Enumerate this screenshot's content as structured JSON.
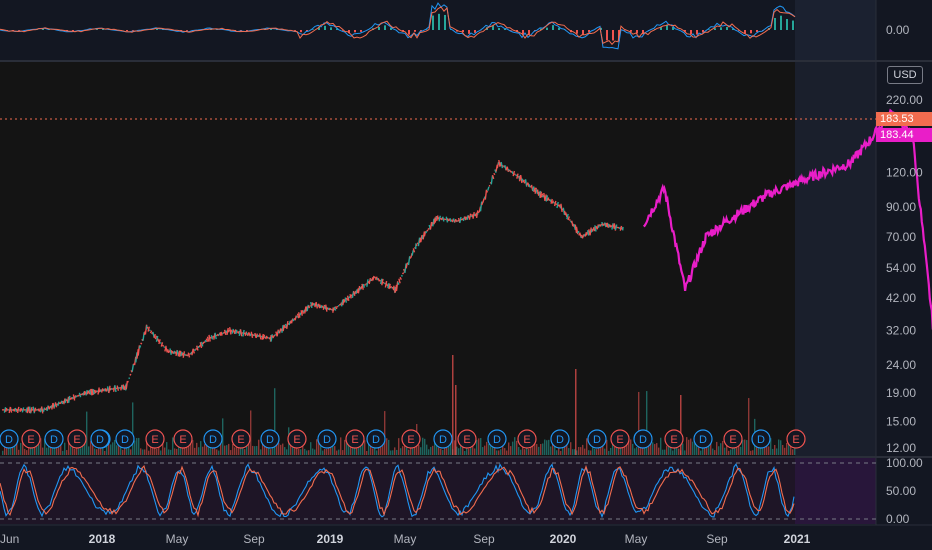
{
  "price_axis": {
    "currency_label": "USD",
    "ticks": [
      "220.00",
      "160.00",
      "120.00",
      "90.00",
      "70.00",
      "54.00",
      "42.00",
      "32.00",
      "24.00",
      "19.00",
      "15.00",
      "12.00"
    ],
    "scale": "log"
  },
  "price_tags": [
    {
      "value": "183.53",
      "color": "#f26c4f"
    },
    {
      "value": "183.44",
      "color": "#e91ec8"
    }
  ],
  "oscillator_top": {
    "ticks": [
      "0.00"
    ]
  },
  "oscillator_bottom": {
    "ticks": [
      "100.00",
      "50.00",
      "0.00"
    ]
  },
  "time_axis": {
    "labels": [
      {
        "text": "Jun",
        "bold": false
      },
      {
        "text": "2018",
        "bold": true
      },
      {
        "text": "May",
        "bold": false
      },
      {
        "text": "Sep",
        "bold": false
      },
      {
        "text": "2019",
        "bold": true
      },
      {
        "text": "May",
        "bold": false
      },
      {
        "text": "Sep",
        "bold": false
      },
      {
        "text": "2020",
        "bold": true
      },
      {
        "text": "May",
        "bold": false
      },
      {
        "text": "Sep",
        "bold": false
      },
      {
        "text": "2021",
        "bold": true
      }
    ]
  },
  "events": [
    "D",
    "E",
    "D",
    "E",
    "D",
    "D",
    "E",
    "E",
    "D",
    "E",
    "D",
    "E",
    "D",
    "E",
    "D",
    "E",
    "D",
    "E",
    "D",
    "E",
    "D",
    "D",
    "E",
    "D",
    "E",
    "D",
    "E",
    "D",
    "E",
    "D"
  ],
  "colors": {
    "up": "#26a69a",
    "down": "#ef5350",
    "projection": "#e91ec8",
    "dividend": "#2196f3",
    "earnings": "#ef5350",
    "stoch_k": "#2196f3",
    "stoch_d": "#f26c4f"
  },
  "chart_data": {
    "type": "line",
    "title": "",
    "y_scale": "log",
    "ylim": [
      11,
      250
    ],
    "series": [
      {
        "values": [
          {
            "x": "2017-06",
            "y": 16.5
          },
          {
            "x": "2017-08",
            "y": 16.5
          },
          {
            "x": "2017-10",
            "y": 19.0
          },
          {
            "x": "2017-12",
            "y": 20.0
          },
          {
            "x": "2018-01",
            "y": 33.0
          },
          {
            "x": "2018-02",
            "y": 27.0
          },
          {
            "x": "2018-03",
            "y": 26.0
          },
          {
            "x": "2018-04",
            "y": 30.0
          },
          {
            "x": "2018-05",
            "y": 32.0
          },
          {
            "x": "2018-07",
            "y": 30.0
          },
          {
            "x": "2018-09",
            "y": 40.0
          },
          {
            "x": "2018-10",
            "y": 38.0
          },
          {
            "x": "2018-12",
            "y": 50.0
          },
          {
            "x": "2019-01",
            "y": 45.0
          },
          {
            "x": "2019-02",
            "y": 65.0
          },
          {
            "x": "2019-03",
            "y": 82.0
          },
          {
            "x": "2019-04",
            "y": 80.0
          },
          {
            "x": "2019-05",
            "y": 85.0
          },
          {
            "x": "2019-06",
            "y": 130.0
          },
          {
            "x": "2019-07",
            "y": 115.0
          },
          {
            "x": "2019-08",
            "y": 100.0
          },
          {
            "x": "2019-09",
            "y": 90.0
          },
          {
            "x": "2019-10",
            "y": 70.0
          },
          {
            "x": "2019-11",
            "y": 78.0
          },
          {
            "x": "2019-12",
            "y": 75.0
          }
        ]
      },
      {
        "values": [
          {
            "x": "2020-01",
            "y": 78.0
          },
          {
            "x": "2020-02",
            "y": 105.0
          },
          {
            "x": "2020-03",
            "y": 45.0
          },
          {
            "x": "2020-04",
            "y": 70.0
          },
          {
            "x": "2020-05",
            "y": 80.0
          },
          {
            "x": "2020-07",
            "y": 100.0
          },
          {
            "x": "2020-09",
            "y": 115.0
          },
          {
            "x": "2020-11",
            "y": 130.0
          },
          {
            "x": "2020-12",
            "y": 160.0
          },
          {
            "x": "2021-01",
            "y": 200.0
          },
          {
            "x": "2021-02",
            "y": 160.0
          },
          {
            "x": "2021-03",
            "y": 32.0
          },
          {
            "x": "2021-04",
            "y": 140.0
          },
          {
            "x": "2021-05",
            "y": 100.0
          }
        ]
      }
    ]
  }
}
